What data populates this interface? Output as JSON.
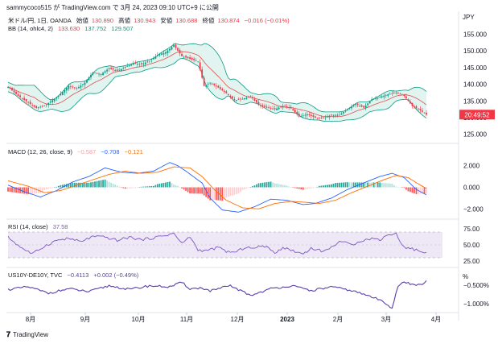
{
  "header": {
    "text": "sammycoco515 が TradingView.com で 3月 24, 2023 09:10 UTC+9 に公開"
  },
  "main_legend": {
    "symbol": "米ドル/円, 1日, OANDA",
    "open_label": "始値",
    "open": "130.890",
    "high_label": "高値",
    "high": "130.943",
    "low_label": "安値",
    "low": "130.688",
    "close_label": "終値",
    "close": "130.874",
    "change": "−0.016 (−0.01%)"
  },
  "bb_legend": {
    "name": "BB (14, ohlc4, 2)",
    "basis": "133.630",
    "upper": "137.752",
    "lower": "129.507"
  },
  "macd_legend": {
    "name": "MACD (12, 26, close, 9)",
    "hist": "−0.587",
    "macd": "−0.708",
    "signal": "−0.121"
  },
  "rsi_legend": {
    "name": "RSI (14, close)",
    "value": "37.58"
  },
  "us10_legend": {
    "name": "US10Y-DE10Y, TVC",
    "v1": "−0.4113",
    "v2": "+0.002 (−0.49%)"
  },
  "price_axis": {
    "currency": "JPY",
    "ticks": [
      "155.000",
      "150.000",
      "145.000",
      "140.000",
      "135.000",
      "130.000",
      "125.000"
    ]
  },
  "price_tag": "20:49:52",
  "macd_axis": {
    "ticks": [
      "2.000",
      "0.000",
      "−2.000"
    ]
  },
  "rsi_axis": {
    "ticks": [
      "75.00",
      "50.00",
      "25.00"
    ]
  },
  "us10_axis": {
    "unit": "%",
    "ticks": [
      "−0.500%",
      "−1.000%"
    ]
  },
  "time_axis": {
    "ticks": [
      "8月",
      "9月",
      "10月",
      "11月",
      "12月",
      "2023",
      "2月",
      "3月",
      "4月"
    ]
  },
  "footer": {
    "brand": "TradingView"
  },
  "colors": {
    "up": "#089981",
    "down": "#f23645",
    "bb_basis": "#e05050",
    "bb_band": "#089981",
    "bb_fill": "#d6efe9",
    "macd": "#2962ff",
    "signal": "#ff6d00",
    "rsi": "#7e57c2",
    "rsi_fill": "#ede7f6",
    "us10": "#5b3fa8"
  },
  "chart_data": [
    {
      "type": "candlestick",
      "title": "米ドル/円, 1日, OANDA",
      "ylim": [
        123,
        158
      ],
      "x_ticks": [
        "8月",
        "9月",
        "10月",
        "11月",
        "12月",
        "2023",
        "2月",
        "3月",
        "4月"
      ],
      "close_path": [
        [
          0,
          139.2
        ],
        [
          5,
          136.5
        ],
        [
          10,
          134.5
        ],
        [
          14,
          132.9
        ],
        [
          18,
          133.6
        ],
        [
          22,
          135.2
        ],
        [
          26,
          137.0
        ],
        [
          30,
          139.5
        ],
        [
          34,
          138.7
        ],
        [
          38,
          140.5
        ],
        [
          42,
          143.6
        ],
        [
          46,
          143.0
        ],
        [
          50,
          144.8
        ],
        [
          54,
          144.0
        ],
        [
          58,
          145.2
        ],
        [
          62,
          146.2
        ],
        [
          66,
          146.0
        ],
        [
          70,
          147.0
        ],
        [
          74,
          148.8
        ],
        [
          78,
          149.6
        ],
        [
          82,
          151.7
        ],
        [
          86,
          148.4
        ],
        [
          90,
          147.6
        ],
        [
          94,
          146.8
        ],
        [
          97,
          139.5
        ],
        [
          100,
          140.5
        ],
        [
          104,
          139.0
        ],
        [
          108,
          137.3
        ],
        [
          112,
          135.2
        ],
        [
          116,
          135.6
        ],
        [
          120,
          136.4
        ],
        [
          124,
          133.8
        ],
        [
          128,
          133.0
        ],
        [
          132,
          132.5
        ],
        [
          136,
          133.5
        ],
        [
          140,
          132.8
        ],
        [
          144,
          130.3
        ],
        [
          148,
          131.0
        ],
        [
          152,
          130.0
        ],
        [
          156,
          129.8
        ],
        [
          160,
          130.8
        ],
        [
          164,
          130.8
        ],
        [
          168,
          132.6
        ],
        [
          172,
          134.0
        ],
        [
          176,
          133.0
        ],
        [
          180,
          135.5
        ],
        [
          184,
          136.2
        ],
        [
          188,
          137.0
        ],
        [
          192,
          137.5
        ],
        [
          196,
          136.5
        ],
        [
          200,
          133.5
        ],
        [
          204,
          132.2
        ],
        [
          207,
          130.9
        ]
      ]
    },
    {
      "type": "bar",
      "title": "MACD (12, 26, close, 9)",
      "ylim": [
        -2.8,
        2.8
      ],
      "macd_line": [
        [
          0,
          0.2
        ],
        [
          8,
          -0.4
        ],
        [
          16,
          -0.9
        ],
        [
          24,
          -0.3
        ],
        [
          32,
          0.5
        ],
        [
          40,
          1.0
        ],
        [
          48,
          1.8
        ],
        [
          56,
          1.4
        ],
        [
          64,
          1.3
        ],
        [
          72,
          1.5
        ],
        [
          80,
          2.3
        ],
        [
          84,
          2.0
        ],
        [
          88,
          1.5
        ],
        [
          96,
          0.4
        ],
        [
          100,
          -1.0
        ],
        [
          106,
          -2.1
        ],
        [
          114,
          -2.3
        ],
        [
          122,
          -1.8
        ],
        [
          130,
          -1.1
        ],
        [
          138,
          -1.2
        ],
        [
          146,
          -1.6
        ],
        [
          152,
          -1.5
        ],
        [
          160,
          -1.0
        ],
        [
          168,
          -0.2
        ],
        [
          176,
          0.4
        ],
        [
          184,
          1.0
        ],
        [
          190,
          1.3
        ],
        [
          196,
          0.9
        ],
        [
          202,
          -0.2
        ],
        [
          207,
          -0.7
        ]
      ],
      "signal_line": [
        [
          0,
          0.6
        ],
        [
          10,
          0.1
        ],
        [
          18,
          -0.5
        ],
        [
          26,
          -0.3
        ],
        [
          34,
          0.2
        ],
        [
          42,
          0.7
        ],
        [
          50,
          1.2
        ],
        [
          58,
          1.5
        ],
        [
          66,
          1.3
        ],
        [
          74,
          1.4
        ],
        [
          82,
          1.9
        ],
        [
          90,
          1.8
        ],
        [
          96,
          1.0
        ],
        [
          102,
          -0.2
        ],
        [
          108,
          -1.2
        ],
        [
          116,
          -1.9
        ],
        [
          124,
          -2.0
        ],
        [
          132,
          -1.5
        ],
        [
          140,
          -1.3
        ],
        [
          148,
          -1.4
        ],
        [
          154,
          -1.5
        ],
        [
          162,
          -1.2
        ],
        [
          170,
          -0.5
        ],
        [
          178,
          0.1
        ],
        [
          186,
          0.7
        ],
        [
          192,
          1.1
        ],
        [
          198,
          0.9
        ],
        [
          204,
          0.2
        ],
        [
          207,
          -0.1
        ]
      ]
    },
    {
      "type": "line",
      "title": "RSI (14, close)",
      "ylim": [
        20,
        80
      ],
      "band": [
        30,
        70
      ],
      "values": [
        [
          0,
          62
        ],
        [
          6,
          47
        ],
        [
          12,
          36
        ],
        [
          18,
          48
        ],
        [
          24,
          57
        ],
        [
          30,
          60
        ],
        [
          36,
          55
        ],
        [
          42,
          63
        ],
        [
          48,
          62
        ],
        [
          54,
          57
        ],
        [
          60,
          62
        ],
        [
          66,
          58
        ],
        [
          72,
          61
        ],
        [
          78,
          65
        ],
        [
          82,
          68
        ],
        [
          86,
          52
        ],
        [
          90,
          63
        ],
        [
          94,
          42
        ],
        [
          98,
          41
        ],
        [
          104,
          46
        ],
        [
          108,
          40
        ],
        [
          112,
          38
        ],
        [
          118,
          47
        ],
        [
          122,
          44
        ],
        [
          126,
          50
        ],
        [
          132,
          38
        ],
        [
          136,
          46
        ],
        [
          142,
          40
        ],
        [
          146,
          36
        ],
        [
          150,
          45
        ],
        [
          156,
          40
        ],
        [
          160,
          46
        ],
        [
          164,
          56
        ],
        [
          170,
          50
        ],
        [
          174,
          56
        ],
        [
          180,
          60
        ],
        [
          184,
          58
        ],
        [
          188,
          66
        ],
        [
          192,
          67
        ],
        [
          196,
          46
        ],
        [
          200,
          44
        ],
        [
          204,
          40
        ],
        [
          207,
          38
        ]
      ]
    },
    {
      "type": "line",
      "title": "US10Y-DE10Y, TVC",
      "ylim": [
        -1.2,
        -0.2
      ],
      "values": [
        [
          0,
          -0.62
        ],
        [
          10,
          -0.55
        ],
        [
          20,
          -0.72
        ],
        [
          30,
          -0.6
        ],
        [
          40,
          -0.68
        ],
        [
          50,
          -0.52
        ],
        [
          60,
          -0.62
        ],
        [
          70,
          -0.52
        ],
        [
          80,
          -0.55
        ],
        [
          86,
          -0.43
        ],
        [
          90,
          -0.6
        ],
        [
          96,
          -0.58
        ],
        [
          100,
          -0.66
        ],
        [
          110,
          -0.52
        ],
        [
          120,
          -0.78
        ],
        [
          130,
          -0.6
        ],
        [
          140,
          -0.52
        ],
        [
          150,
          -0.65
        ],
        [
          160,
          -0.55
        ],
        [
          170,
          -0.65
        ],
        [
          180,
          -0.82
        ],
        [
          186,
          -0.95
        ],
        [
          190,
          -1.12
        ],
        [
          193,
          -0.52
        ],
        [
          196,
          -0.43
        ],
        [
          200,
          -0.48
        ],
        [
          204,
          -0.5
        ],
        [
          207,
          -0.41
        ]
      ]
    }
  ]
}
